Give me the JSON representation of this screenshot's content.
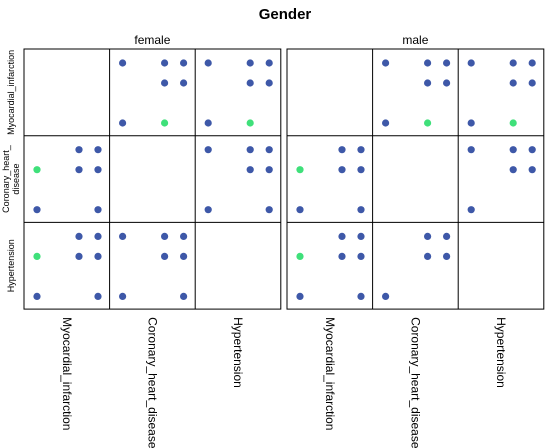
{
  "chart_data": {
    "type": "scatter",
    "title": "Gender",
    "facet_variable": "Gender",
    "variables": [
      "Myocardial_infarction",
      "Coronary_heart_disease",
      "Hypertension"
    ],
    "row_labels": [
      "Myocardial_infarction",
      "Coronary_heart_\ndisease",
      "Hypertension"
    ],
    "column_labels": [
      "Myocardial_infarction",
      "Coronary_heart_disease",
      "Hypertension"
    ],
    "point_colors": {
      "default": "#3e58a8",
      "highlight": "#3fe07a"
    },
    "grid": false,
    "panels": [
      {
        "name": "female",
        "cells": [
          {
            "row": 0,
            "col": 1,
            "points": [
              {
                "x": 0,
                "y": 0
              },
              {
                "x": 0,
                "y": 2
              },
              {
                "x": 1,
                "y": 1
              },
              {
                "x": 1,
                "y": 2
              },
              {
                "x": 2,
                "y": 1
              },
              {
                "x": 2,
                "y": 2
              },
              {
                "x": 1,
                "y": 0,
                "highlight": true
              }
            ]
          },
          {
            "row": 0,
            "col": 2,
            "points": [
              {
                "x": 0,
                "y": 0
              },
              {
                "x": 0,
                "y": 2
              },
              {
                "x": 1,
                "y": 1
              },
              {
                "x": 1,
                "y": 2
              },
              {
                "x": 2,
                "y": 1
              },
              {
                "x": 2,
                "y": 2
              },
              {
                "x": 1,
                "y": 0,
                "highlight": true
              }
            ]
          },
          {
            "row": 1,
            "col": 0,
            "points": [
              {
                "x": 0,
                "y": 0
              },
              {
                "x": 1,
                "y": 1
              },
              {
                "x": 1,
                "y": 2
              },
              {
                "x": 2,
                "y": 0
              },
              {
                "x": 2,
                "y": 1
              },
              {
                "x": 2,
                "y": 2
              },
              {
                "x": 0,
                "y": 1,
                "highlight": true
              }
            ]
          },
          {
            "row": 1,
            "col": 2,
            "points": [
              {
                "x": 0,
                "y": 0
              },
              {
                "x": 0,
                "y": 2
              },
              {
                "x": 1,
                "y": 1
              },
              {
                "x": 1,
                "y": 2
              },
              {
                "x": 2,
                "y": 0
              },
              {
                "x": 2,
                "y": 1
              },
              {
                "x": 2,
                "y": 2
              }
            ]
          },
          {
            "row": 2,
            "col": 0,
            "points": [
              {
                "x": 0,
                "y": 0
              },
              {
                "x": 1,
                "y": 1
              },
              {
                "x": 1,
                "y": 2
              },
              {
                "x": 2,
                "y": 0
              },
              {
                "x": 2,
                "y": 1
              },
              {
                "x": 2,
                "y": 2
              },
              {
                "x": 0,
                "y": 1,
                "highlight": true
              }
            ]
          },
          {
            "row": 2,
            "col": 1,
            "points": [
              {
                "x": 0,
                "y": 0
              },
              {
                "x": 0,
                "y": 2
              },
              {
                "x": 1,
                "y": 1
              },
              {
                "x": 1,
                "y": 2
              },
              {
                "x": 2,
                "y": 0
              },
              {
                "x": 2,
                "y": 1
              },
              {
                "x": 2,
                "y": 2
              }
            ]
          }
        ]
      },
      {
        "name": "male",
        "cells": [
          {
            "row": 0,
            "col": 1,
            "points": [
              {
                "x": 0,
                "y": 0
              },
              {
                "x": 0,
                "y": 2
              },
              {
                "x": 1,
                "y": 1
              },
              {
                "x": 1,
                "y": 2
              },
              {
                "x": 2,
                "y": 1
              },
              {
                "x": 2,
                "y": 2
              },
              {
                "x": 1,
                "y": 0,
                "highlight": true
              }
            ]
          },
          {
            "row": 0,
            "col": 2,
            "points": [
              {
                "x": 0,
                "y": 0
              },
              {
                "x": 0,
                "y": 2
              },
              {
                "x": 1,
                "y": 1
              },
              {
                "x": 1,
                "y": 2
              },
              {
                "x": 2,
                "y": 1
              },
              {
                "x": 2,
                "y": 2
              },
              {
                "x": 1,
                "y": 0,
                "highlight": true
              }
            ]
          },
          {
            "row": 1,
            "col": 0,
            "points": [
              {
                "x": 0,
                "y": 0
              },
              {
                "x": 1,
                "y": 1
              },
              {
                "x": 1,
                "y": 2
              },
              {
                "x": 2,
                "y": 0
              },
              {
                "x": 2,
                "y": 1
              },
              {
                "x": 2,
                "y": 2
              },
              {
                "x": 0,
                "y": 1,
                "highlight": true
              }
            ]
          },
          {
            "row": 1,
            "col": 2,
            "points": [
              {
                "x": 0,
                "y": 0
              },
              {
                "x": 0,
                "y": 2
              },
              {
                "x": 1,
                "y": 1
              },
              {
                "x": 1,
                "y": 2
              },
              {
                "x": 2,
                "y": 1
              },
              {
                "x": 2,
                "y": 2
              }
            ]
          },
          {
            "row": 2,
            "col": 0,
            "points": [
              {
                "x": 0,
                "y": 0
              },
              {
                "x": 1,
                "y": 1
              },
              {
                "x": 1,
                "y": 2
              },
              {
                "x": 2,
                "y": 0
              },
              {
                "x": 2,
                "y": 1
              },
              {
                "x": 2,
                "y": 2
              },
              {
                "x": 0,
                "y": 1,
                "highlight": true
              }
            ]
          },
          {
            "row": 2,
            "col": 1,
            "points": [
              {
                "x": 0,
                "y": 0
              },
              {
                "x": 1,
                "y": 1
              },
              {
                "x": 1,
                "y": 2
              },
              {
                "x": 2,
                "y": 1
              },
              {
                "x": 2,
                "y": 2
              }
            ]
          }
        ]
      }
    ]
  }
}
